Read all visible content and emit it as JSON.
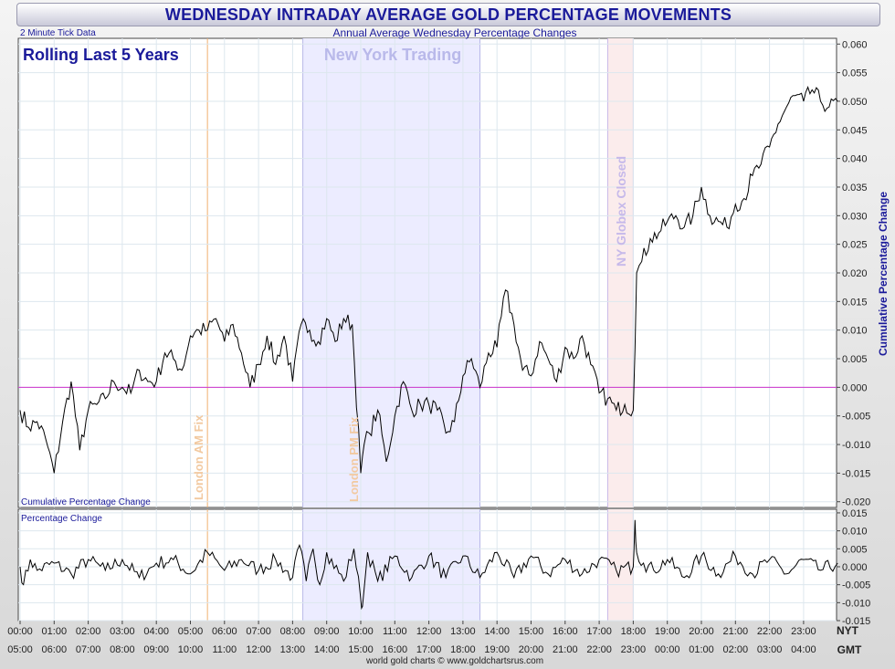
{
  "title": "WEDNESDAY INTRADAY AVERAGE GOLD PERCENTAGE MOVEMENTS",
  "subtitle": "Annual Average Wednesday Percentage Changes",
  "tick_note": "2 Minute Tick Data",
  "rolling_label": "Rolling Last 5 Years",
  "session_label": "New York Trading",
  "annotations": {
    "am_fix": "London AM Fix",
    "pm_fix": "London PM Fix",
    "globex": "NY Globex Closed"
  },
  "upper_panel_label": "Cumulative Percentage Change",
  "lower_panel_label": "Percentage Change",
  "right_axis_title": "Cumulative Percentage Change",
  "footer": "world gold charts © www.goldchartsrus.com",
  "nyt_label": "NYT",
  "gmt_label": "GMT",
  "nyt_ticks": [
    "00:00",
    "01:00",
    "02:00",
    "03:00",
    "04:00",
    "05:00",
    "06:00",
    "07:00",
    "08:00",
    "09:00",
    "10:00",
    "11:00",
    "12:00",
    "13:00",
    "14:00",
    "15:00",
    "16:00",
    "17:00",
    "18:00",
    "19:00",
    "20:00",
    "21:00",
    "22:00",
    "23:00"
  ],
  "gmt_ticks": [
    "05:00",
    "06:00",
    "07:00",
    "08:00",
    "09:00",
    "10:00",
    "11:00",
    "12:00",
    "13:00",
    "14:00",
    "15:00",
    "16:00",
    "17:00",
    "18:00",
    "19:00",
    "20:00",
    "21:00",
    "22:00",
    "23:00",
    "00:00",
    "01:00",
    "02:00",
    "03:00",
    "04:00"
  ],
  "upper_ticks": [
    "0.060",
    "0.055",
    "0.050",
    "0.045",
    "0.040",
    "0.035",
    "0.030",
    "0.025",
    "0.020",
    "0.015",
    "0.010",
    "0.005",
    "0.000",
    "-0.005",
    "-0.010",
    "-0.015",
    "-0.020"
  ],
  "lower_ticks": [
    "0.015",
    "0.010",
    "0.005",
    "0.000",
    "-0.005",
    "-0.010",
    "-0.015"
  ],
  "colors": {
    "title": "#1a1a9a",
    "line": "#000000",
    "zero_line": "#cc33cc",
    "fix_line": "#f0b070",
    "session_band": "#ececff",
    "globex_band": "#fbecec",
    "grid": "#dde7ee"
  },
  "chart_data": [
    {
      "type": "line",
      "name": "Cumulative Percentage Change",
      "x_unit": "NYT hour",
      "ylim": [
        -0.021,
        0.061
      ],
      "grid": true,
      "x": [
        0.0,
        0.25,
        0.5,
        0.75,
        1.0,
        1.25,
        1.5,
        1.75,
        2.0,
        2.25,
        2.5,
        2.75,
        3.0,
        3.25,
        3.5,
        3.75,
        4.0,
        4.25,
        4.5,
        4.75,
        5.0,
        5.25,
        5.5,
        5.75,
        6.0,
        6.25,
        6.5,
        6.75,
        7.0,
        7.25,
        7.5,
        7.75,
        8.0,
        8.25,
        8.5,
        8.75,
        9.0,
        9.25,
        9.5,
        9.75,
        10.0,
        10.1,
        10.25,
        10.5,
        10.75,
        11.0,
        11.25,
        11.5,
        11.75,
        12.0,
        12.25,
        12.5,
        12.75,
        13.0,
        13.25,
        13.5,
        13.75,
        14.0,
        14.25,
        14.5,
        14.75,
        15.0,
        15.25,
        15.5,
        15.75,
        16.0,
        16.25,
        16.5,
        16.75,
        17.0,
        17.25,
        17.5,
        17.75,
        18.0,
        18.1,
        18.25,
        18.5,
        18.75,
        19.0,
        19.25,
        19.5,
        19.75,
        20.0,
        20.25,
        20.5,
        20.75,
        21.0,
        21.25,
        21.5,
        21.75,
        22.0,
        22.25,
        22.5,
        22.75,
        23.0,
        23.25,
        23.5,
        23.75,
        24.0
      ],
      "y": [
        -0.004,
        -0.007,
        -0.006,
        -0.009,
        -0.015,
        -0.006,
        0.001,
        -0.011,
        -0.004,
        -0.003,
        -0.002,
        0.001,
        0.0,
        -0.001,
        0.003,
        0.001,
        0.001,
        0.006,
        0.005,
        0.003,
        0.009,
        0.01,
        0.01,
        0.012,
        0.008,
        0.011,
        0.006,
        0.0,
        0.004,
        0.009,
        0.004,
        0.009,
        0.001,
        0.011,
        0.01,
        0.008,
        0.012,
        0.008,
        0.012,
        0.011,
        -0.015,
        -0.01,
        -0.008,
        -0.004,
        -0.013,
        -0.005,
        0.001,
        -0.004,
        -0.003,
        -0.003,
        -0.004,
        -0.008,
        -0.006,
        0.002,
        0.005,
        0.0,
        0.006,
        0.007,
        0.017,
        0.011,
        0.003,
        0.002,
        0.008,
        0.005,
        0.001,
        0.007,
        0.005,
        0.009,
        0.004,
        -0.001,
        -0.002,
        -0.004,
        -0.003,
        -0.004,
        0.02,
        0.022,
        0.026,
        0.027,
        0.029,
        0.03,
        0.028,
        0.03,
        0.035,
        0.03,
        0.029,
        0.028,
        0.032,
        0.033,
        0.037,
        0.039,
        0.042,
        0.046,
        0.049,
        0.051,
        0.05,
        0.052,
        0.05,
        0.049,
        0.05
      ]
    },
    {
      "type": "line",
      "name": "Percentage Change",
      "x_unit": "NYT hour",
      "ylim": [
        -0.015,
        0.016
      ],
      "grid": true,
      "x": [
        0.0,
        0.1,
        0.3,
        0.5,
        1.0,
        1.5,
        2.0,
        2.5,
        3.0,
        3.5,
        4.0,
        4.5,
        5.0,
        5.5,
        6.0,
        6.5,
        7.0,
        7.5,
        8.0,
        8.2,
        8.4,
        8.6,
        8.8,
        9.0,
        9.5,
        9.8,
        10.0,
        10.05,
        10.2,
        10.5,
        11.0,
        11.5,
        12.0,
        12.5,
        13.0,
        13.5,
        14.0,
        14.5,
        15.0,
        15.5,
        16.0,
        16.5,
        17.0,
        17.5,
        18.0,
        18.05,
        18.1,
        18.3,
        18.6,
        19.0,
        19.5,
        20.0,
        20.5,
        21.0,
        21.5,
        22.0,
        22.5,
        23.0,
        23.5,
        24.0
      ],
      "y": [
        0.0,
        -0.005,
        0.002,
        -0.001,
        0.001,
        -0.002,
        0.002,
        -0.001,
        0.002,
        -0.003,
        0.001,
        0.002,
        -0.002,
        0.004,
        -0.001,
        0.002,
        -0.001,
        0.002,
        -0.003,
        0.006,
        -0.004,
        0.005,
        -0.005,
        0.004,
        -0.004,
        0.005,
        -0.009,
        -0.011,
        0.004,
        -0.004,
        0.003,
        -0.003,
        0.003,
        -0.003,
        0.003,
        -0.003,
        0.004,
        -0.003,
        0.003,
        -0.002,
        0.002,
        -0.002,
        0.002,
        -0.001,
        0.0,
        0.013,
        0.004,
        0.001,
        -0.001,
        0.002,
        -0.003,
        0.003,
        -0.002,
        0.003,
        -0.002,
        0.002,
        -0.002,
        0.002,
        -0.001,
        0.001
      ]
    }
  ]
}
